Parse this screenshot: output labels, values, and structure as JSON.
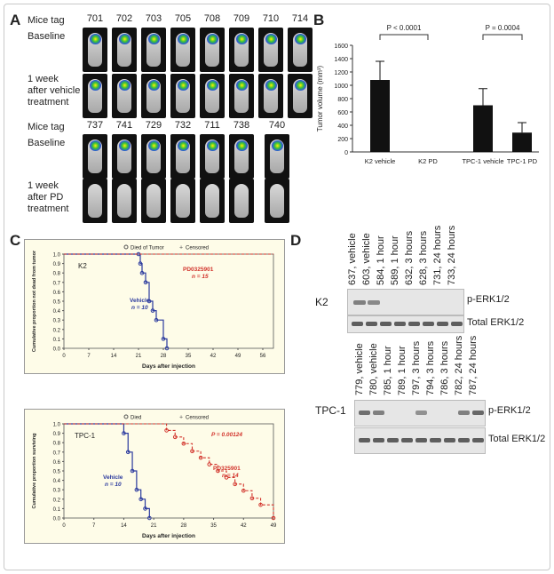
{
  "panelA": {
    "letter": "A",
    "mice_tag_label": "Mice tag",
    "baseline_label": "Baseline",
    "vehicle_row_label_1": "1 week",
    "vehicle_row_label_2": "after vehicle",
    "vehicle_row_label_3": "treatment",
    "pd_row_label_1": "1 week",
    "pd_row_label_2": "after PD",
    "pd_row_label_3": "treatment",
    "tags_top": [
      "701",
      "702",
      "703",
      "705",
      "708",
      "709",
      "710",
      "714"
    ],
    "tags_bottom": [
      "737",
      "741",
      "729",
      "732",
      "711",
      "738",
      "740"
    ]
  },
  "panelB": {
    "letter": "B",
    "p1": "P < 0.0001",
    "p2": "P = 0.0004",
    "chart_data": {
      "type": "bar",
      "categories": [
        "K2 vehicle",
        "K2 PD",
        "TPC-1 vehicle",
        "TPC-1 PD"
      ],
      "values": [
        1080,
        0,
        700,
        290
      ],
      "errors": [
        280,
        0,
        250,
        150
      ],
      "ylabel": "Tumor volume (mm³)",
      "ylim": [
        0,
        1600
      ],
      "yticks": [
        "0",
        "200",
        "400",
        "600",
        "800",
        "1000",
        "1200",
        "1400",
        "1600"
      ]
    }
  },
  "panelC": {
    "letter": "C",
    "top": {
      "legend_died": "Died of Tumor",
      "legend_censored": "Censored",
      "name": "K2",
      "pd_label": "PD0325901",
      "pd_n": "n = 15",
      "veh_label": "Vehicle",
      "veh_n": "n = 10",
      "ylabel": "Cumulative proportion not dead from tumor",
      "xlabel": "Days after injection",
      "xticks": [
        "0",
        "7",
        "14",
        "21",
        "28",
        "35",
        "42",
        "49",
        "56"
      ],
      "yticks": [
        "0.0",
        "0.1",
        "0.2",
        "0.3",
        "0.4",
        "0.5",
        "0.6",
        "0.7",
        "0.8",
        "0.9",
        "1.0"
      ]
    },
    "bottom": {
      "legend_died": "Died",
      "legend_censored": "Censored",
      "name": "TPC-1",
      "pval": "P = 0.00124",
      "pd_label": "PD325901",
      "pd_n": "n = 14",
      "veh_label": "Vehicle",
      "veh_n": "n = 10",
      "ylabel": "Cumulative proportion surviving",
      "xlabel": "Days after injection",
      "xticks": [
        "0",
        "7",
        "14",
        "21",
        "28",
        "35",
        "42",
        "49"
      ],
      "yticks": [
        "0.0",
        "0.1",
        "0.2",
        "0.3",
        "0.4",
        "0.5",
        "0.6",
        "0.7",
        "0.8",
        "0.9",
        "1.0"
      ]
    },
    "chart_data": [
      {
        "type": "line",
        "series": [
          {
            "name": "Vehicle",
            "x": [
              0,
              21,
              21.5,
              22,
              23,
              24,
              25,
              26,
              28,
              29
            ],
            "y": [
              1.0,
              1.0,
              0.9,
              0.8,
              0.7,
              0.5,
              0.4,
              0.3,
              0.1,
              0.0
            ]
          },
          {
            "name": "PD0325901",
            "x": [
              0,
              59
            ],
            "y": [
              1.0,
              1.0
            ]
          }
        ],
        "xlim": [
          0,
          59
        ],
        "ylim": [
          0,
          1
        ]
      },
      {
        "type": "line",
        "series": [
          {
            "name": "Vehicle",
            "x": [
              0,
              14,
              15,
              16,
              17,
              18,
              19,
              20
            ],
            "y": [
              1.0,
              0.9,
              0.7,
              0.5,
              0.3,
              0.2,
              0.1,
              0.0
            ]
          },
          {
            "name": "PD325901",
            "x": [
              0,
              24,
              26,
              28,
              30,
              32,
              34,
              36,
              38,
              40,
              42,
              44,
              46,
              49
            ],
            "y": [
              1.0,
              0.93,
              0.86,
              0.79,
              0.71,
              0.64,
              0.57,
              0.5,
              0.43,
              0.36,
              0.29,
              0.21,
              0.14,
              0.0
            ]
          }
        ],
        "xlim": [
          0,
          49
        ],
        "ylim": [
          0,
          1
        ]
      }
    ]
  },
  "panelD": {
    "letter": "D",
    "k2_label": "K2",
    "tpc_label": "TPC-1",
    "perk": "p-ERK1/2",
    "total": "Total ERK1/2",
    "k2_lanes": [
      "637, vehicle",
      "603, vehicle",
      "584, 1 hour",
      "589, 1 hour",
      "632, 3 hours",
      "628, 3 hours",
      "731, 24 hours",
      "733, 24 hours"
    ],
    "tpc_lanes": [
      "779, vehicle",
      "780, vehicle",
      "785, 1 hour",
      "789, 1 hour",
      "797, 3 hours",
      "794, 3 hours",
      "786, 3 hours",
      "782, 24 hours",
      "787, 24 hours"
    ]
  }
}
